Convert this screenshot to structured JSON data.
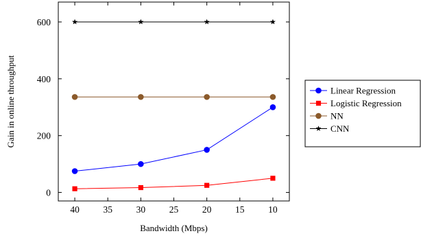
{
  "chart_data": {
    "type": "line",
    "title": "",
    "xlabel": "Bandwidth (Mbps)",
    "ylabel": "Gain in online throughput",
    "x_reversed": true,
    "xlim": [
      42.5,
      7.5
    ],
    "ylim": [
      -30,
      670
    ],
    "xticks": [
      40,
      35,
      30,
      25,
      20,
      15,
      10
    ],
    "yticks": [
      0,
      200,
      400,
      600
    ],
    "grid": false,
    "legend_position": "right",
    "x": [
      40,
      30,
      20,
      10
    ],
    "series": [
      {
        "name": "Linear Regression",
        "values": [
          75,
          100,
          150,
          300
        ],
        "color": "#0000ff",
        "marker": "circle"
      },
      {
        "name": "Logistic Regression",
        "values": [
          13,
          17,
          25,
          50
        ],
        "color": "#ff0000",
        "marker": "square"
      },
      {
        "name": "NN",
        "values": [
          336,
          336,
          336,
          336
        ],
        "color": "#8b5a2b",
        "marker": "circle"
      },
      {
        "name": "CNN",
        "values": [
          600,
          600,
          600,
          600
        ],
        "color": "#000000",
        "marker": "star"
      }
    ]
  }
}
